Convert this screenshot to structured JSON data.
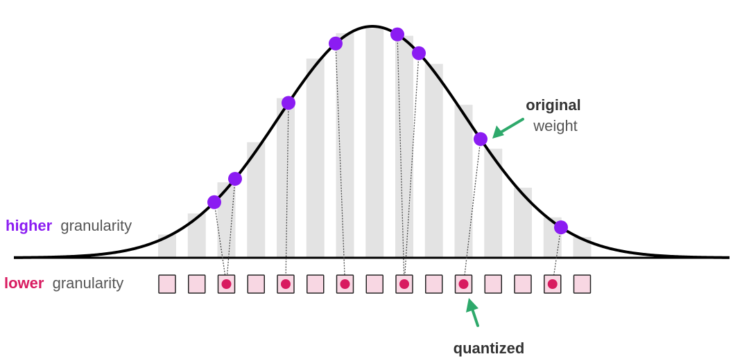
{
  "labels": {
    "higher_strong": "higher",
    "higher_rest": "granularity",
    "lower_strong": "lower",
    "lower_rest": "granularity",
    "original_strong": "original",
    "original_rest": "weight",
    "quantized": "quantized"
  },
  "colors": {
    "higher": "#8B1CF2",
    "lower": "#D81B60",
    "weight_point": "#8B1CF2",
    "quantized_point": "#D81B60",
    "cell_fill": "#F8D7E3",
    "bar_fill": "#E3E3E3",
    "curve": "#000000",
    "arrow": "#2EA96B",
    "text_dark": "#333333"
  },
  "diagram": {
    "bins": 15,
    "weights": [
      {
        "bin": 2
      },
      {
        "bin": 2
      },
      {
        "bin": 4
      },
      {
        "bin": 6
      },
      {
        "bin": 8
      },
      {
        "bin": 8
      },
      {
        "bin": 10
      },
      {
        "bin": 13
      }
    ]
  }
}
